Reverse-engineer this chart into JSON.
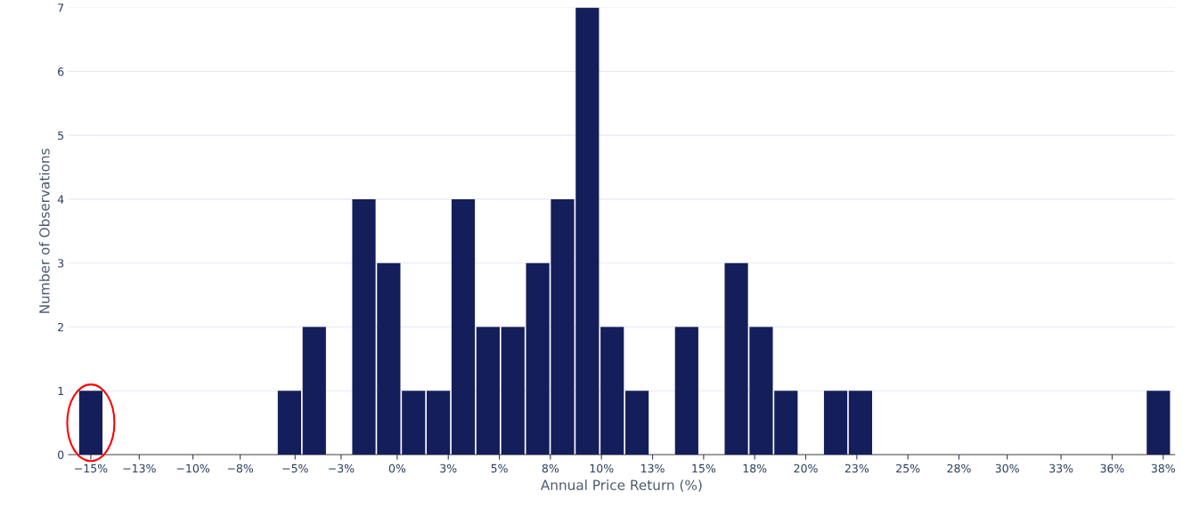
{
  "chart_data": {
    "type": "histogram",
    "xlabel": "Annual Price Return (%)",
    "ylabel": "Number of Observations",
    "bins": [
      -15.615,
      -14.385,
      -13.155,
      -11.925,
      -10.695,
      -9.465,
      -8.235,
      -7.005,
      -5.775,
      -4.545,
      -3.315,
      -2.085,
      -0.855,
      0.375,
      1.605,
      2.835,
      4.065,
      5.295,
      6.525,
      7.755,
      8.985,
      10.215,
      11.445,
      12.675,
      13.905,
      15.135,
      16.365,
      17.595,
      18.825,
      20.055,
      21.285,
      22.515,
      23.745,
      24.975,
      26.205,
      27.435,
      28.665,
      29.895,
      31.125,
      32.355,
      33.585,
      34.815,
      36.045,
      37.275,
      38.505
    ],
    "values": [
      1,
      0,
      0,
      0,
      0,
      0,
      0,
      0,
      1,
      2,
      0,
      4,
      3,
      1,
      1,
      4,
      2,
      2,
      3,
      4,
      7,
      2,
      1,
      0,
      2,
      0,
      3,
      2,
      1,
      0,
      1,
      1,
      0,
      0,
      0,
      0,
      0,
      0,
      0,
      0,
      0,
      0,
      0,
      1
    ],
    "color": "#141e5a",
    "xlim": [
      -16.1,
      38.7
    ],
    "xticks": [
      {
        "value": -15,
        "label": "−15%"
      },
      {
        "value": -12.6,
        "label": "−13%"
      },
      {
        "value": -9.94,
        "label": "−10%"
      },
      {
        "value": -7.6,
        "label": "−8%"
      },
      {
        "value": -4.88,
        "label": "−5%"
      },
      {
        "value": -2.6,
        "label": "−3%"
      },
      {
        "value": 0.18,
        "label": "0%"
      },
      {
        "value": 2.71,
        "label": "3%"
      },
      {
        "value": 5.24,
        "label": "5%"
      },
      {
        "value": 7.77,
        "label": "8%"
      },
      {
        "value": 10.3,
        "label": "10%"
      },
      {
        "value": 12.83,
        "label": "13%"
      },
      {
        "value": 15.36,
        "label": "15%"
      },
      {
        "value": 17.89,
        "label": "18%"
      },
      {
        "value": 20.42,
        "label": "20%"
      },
      {
        "value": 22.95,
        "label": "23%"
      },
      {
        "value": 25.48,
        "label": "25%"
      },
      {
        "value": 28.01,
        "label": "28%"
      },
      {
        "value": 30.4,
        "label": "30%"
      },
      {
        "value": 33.07,
        "label": "33%"
      },
      {
        "value": 35.6,
        "label": "36%"
      },
      {
        "value": 38.13,
        "label": "38%"
      }
    ],
    "ylim": [
      0,
      7
    ],
    "yticks": [
      0,
      1,
      2,
      3,
      4,
      5,
      6,
      7
    ],
    "grid": "y"
  }
}
